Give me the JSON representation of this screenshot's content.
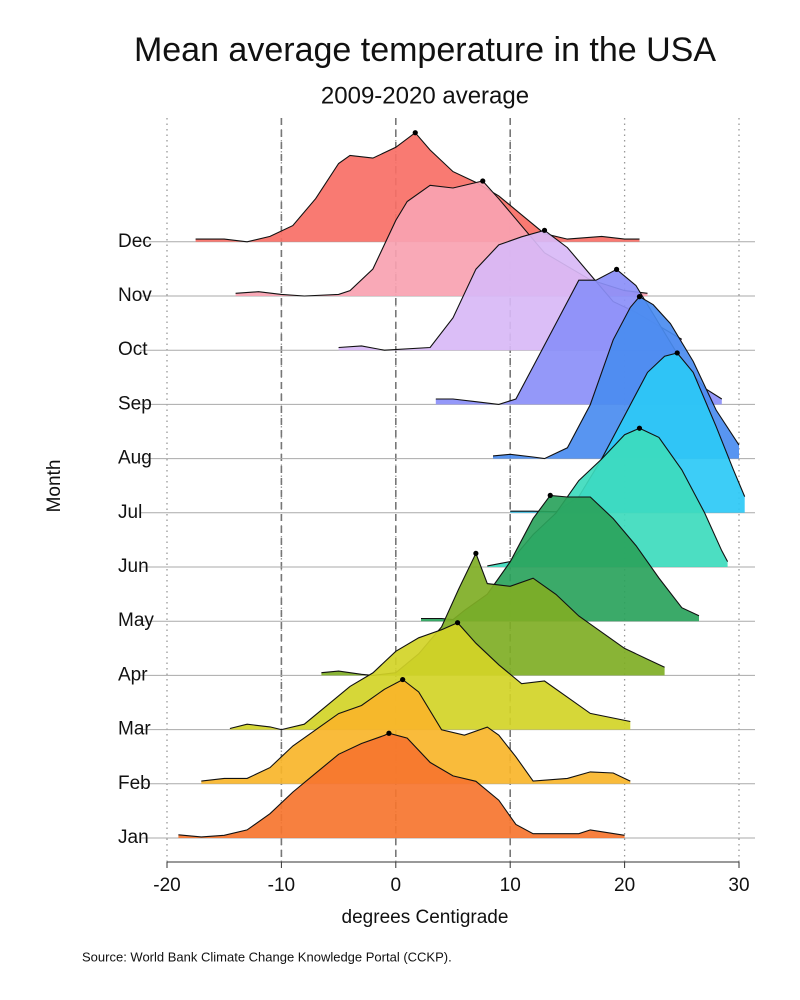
{
  "chart_data": {
    "type": "ridgeline",
    "title": "Mean average temperature in the USA",
    "subtitle": "2009-2020 average",
    "x_label": "degrees Centigrade",
    "y_label": "Month",
    "source": "Source: World Bank Climate Change Knowledge Portal (CCKP).",
    "xlim": [
      -20,
      30
    ],
    "xticks": [
      -20,
      -10,
      0,
      10,
      20,
      30
    ],
    "reference_lines": [
      -10,
      0,
      10
    ],
    "grid": true,
    "categories": [
      "Jan",
      "Feb",
      "Mar",
      "Apr",
      "May",
      "Jun",
      "Jul",
      "Aug",
      "Sep",
      "Oct",
      "Nov",
      "Dec"
    ],
    "series": [
      {
        "name": "Jan",
        "color": "#f6752f",
        "x": [
          -19,
          -17,
          -15,
          -13,
          -11,
          -9,
          -7,
          -5,
          -3,
          -1,
          -0.6,
          1,
          3,
          5,
          7,
          9,
          10.5,
          12,
          16,
          17,
          20
        ],
        "values": [
          0.06,
          0.02,
          0.05,
          0.15,
          0.45,
          0.85,
          1.2,
          1.55,
          1.75,
          1.9,
          1.94,
          1.85,
          1.4,
          1.15,
          1.05,
          0.7,
          0.25,
          0.08,
          0.08,
          0.15,
          0.05
        ]
      },
      {
        "name": "Feb",
        "color": "#f9b52a",
        "x": [
          -17,
          -15,
          -13,
          -11,
          -9,
          -7,
          -5,
          -3,
          -1,
          0.6,
          2,
          4,
          6,
          8,
          9,
          10.5,
          12,
          15,
          17,
          19,
          20.5
        ],
        "values": [
          0.05,
          0.1,
          0.1,
          0.3,
          0.7,
          1.0,
          1.3,
          1.45,
          1.75,
          1.93,
          1.7,
          1.0,
          0.9,
          1.05,
          0.9,
          0.5,
          0.05,
          0.1,
          0.22,
          0.2,
          0.05
        ]
      },
      {
        "name": "Mar",
        "color": "#d2d427",
        "x": [
          -14.5,
          -13,
          -11,
          -10,
          -8,
          -6,
          -4,
          -2,
          0,
          2,
          4,
          5.4,
          7,
          9,
          11,
          13,
          15,
          17,
          20.5
        ],
        "values": [
          0.02,
          0.1,
          0.05,
          0,
          0.1,
          0.45,
          0.8,
          1.05,
          1.45,
          1.7,
          1.85,
          1.98,
          1.6,
          1.2,
          0.85,
          0.9,
          0.6,
          0.3,
          0.15
        ]
      },
      {
        "name": "Apr",
        "color": "#7fae25",
        "x": [
          -6.5,
          -5,
          -3,
          -2,
          0,
          2,
          4,
          5.5,
          7,
          8,
          10,
          12,
          14,
          16,
          18,
          20,
          22,
          23.5
        ],
        "values": [
          0.05,
          0.08,
          0.02,
          0,
          0.05,
          0.4,
          0.9,
          1.6,
          2.26,
          1.7,
          1.65,
          1.8,
          1.5,
          1.1,
          0.8,
          0.5,
          0.3,
          0.15
        ]
      },
      {
        "name": "May",
        "color": "#2aa35c",
        "x": [
          2.2,
          4,
          5,
          6,
          8,
          10,
          12,
          13.5,
          15,
          17,
          19,
          21,
          23,
          25,
          26.5
        ],
        "values": [
          0.05,
          0.05,
          0.03,
          0.2,
          0.5,
          1.1,
          1.9,
          2.33,
          2.3,
          2.3,
          1.9,
          1.4,
          0.8,
          0.25,
          0.1
        ]
      },
      {
        "name": "Jun",
        "color": "#3ddbbd",
        "x": [
          8,
          10,
          12,
          14,
          16,
          18,
          20,
          21.3,
          23,
          25,
          27,
          28.5,
          29
        ],
        "values": [
          0.02,
          0.1,
          0.6,
          1.0,
          1.6,
          2.0,
          2.45,
          2.57,
          2.4,
          1.8,
          1.0,
          0.3,
          0.1
        ]
      },
      {
        "name": "Jul",
        "color": "#2cc9f6",
        "x": [
          10,
          12,
          14,
          16,
          18,
          20,
          22,
          23.5,
          24.6,
          26,
          28,
          29.5,
          30.5
        ],
        "values": [
          0.03,
          0.03,
          0.02,
          0.3,
          1.0,
          1.8,
          2.6,
          2.9,
          2.96,
          2.6,
          1.6,
          0.8,
          0.3
        ]
      },
      {
        "name": "Aug",
        "color": "#4a8cf0",
        "x": [
          8.5,
          10,
          12,
          13,
          15,
          17,
          19,
          20.5,
          21.3,
          22.5,
          24,
          26,
          28,
          30
        ],
        "values": [
          0.05,
          0.08,
          0.03,
          0,
          0.2,
          1.0,
          2.2,
          2.8,
          3.0,
          2.85,
          2.5,
          1.8,
          0.9,
          0.25
        ]
      },
      {
        "name": "Sep",
        "color": "#8b8ff9",
        "x": [
          3.5,
          5,
          7,
          9,
          10.5,
          12,
          14,
          16,
          17.5,
          19.3,
          21,
          23,
          25,
          27,
          28.5
        ],
        "values": [
          0.1,
          0.1,
          0.05,
          0,
          0.1,
          0.7,
          1.5,
          2.3,
          2.3,
          2.5,
          2.2,
          1.5,
          0.8,
          0.3,
          0.1
        ]
      },
      {
        "name": "Oct",
        "color": "#d8b8f6",
        "x": [
          -5,
          -3,
          -1,
          3,
          5,
          7,
          9,
          11,
          13,
          15,
          17,
          19,
          21,
          23,
          25
        ],
        "values": [
          0.05,
          0.08,
          0,
          0.05,
          0.6,
          1.5,
          1.95,
          2.1,
          2.22,
          1.9,
          1.4,
          0.9,
          0.7,
          0.45,
          0.2
        ]
      },
      {
        "name": "Nov",
        "color": "#f9a2b1",
        "x": [
          -14,
          -12,
          -10,
          -8,
          -5,
          -4,
          -2,
          0,
          1,
          3,
          5,
          7.6,
          9,
          11,
          13,
          15,
          17,
          20,
          22
        ],
        "values": [
          0.05,
          0.08,
          0.03,
          0,
          0.03,
          0.1,
          0.5,
          1.4,
          1.75,
          2.05,
          2.0,
          2.13,
          1.8,
          1.3,
          0.8,
          0.55,
          0.3,
          0.1,
          0.05
        ]
      },
      {
        "name": "Dec",
        "color": "#f86f66",
        "x": [
          -17.5,
          -15,
          -13,
          -11,
          -9,
          -7,
          -5,
          -4,
          -2,
          0,
          1.7,
          3,
          5,
          7,
          9,
          11,
          13,
          15,
          18,
          20,
          21.3
        ],
        "values": [
          0.05,
          0.05,
          0,
          0.1,
          0.3,
          0.8,
          1.45,
          1.6,
          1.55,
          1.75,
          2.02,
          1.7,
          1.3,
          1.1,
          0.85,
          0.5,
          0.15,
          0.05,
          0.1,
          0.05,
          0.05
        ]
      }
    ]
  }
}
